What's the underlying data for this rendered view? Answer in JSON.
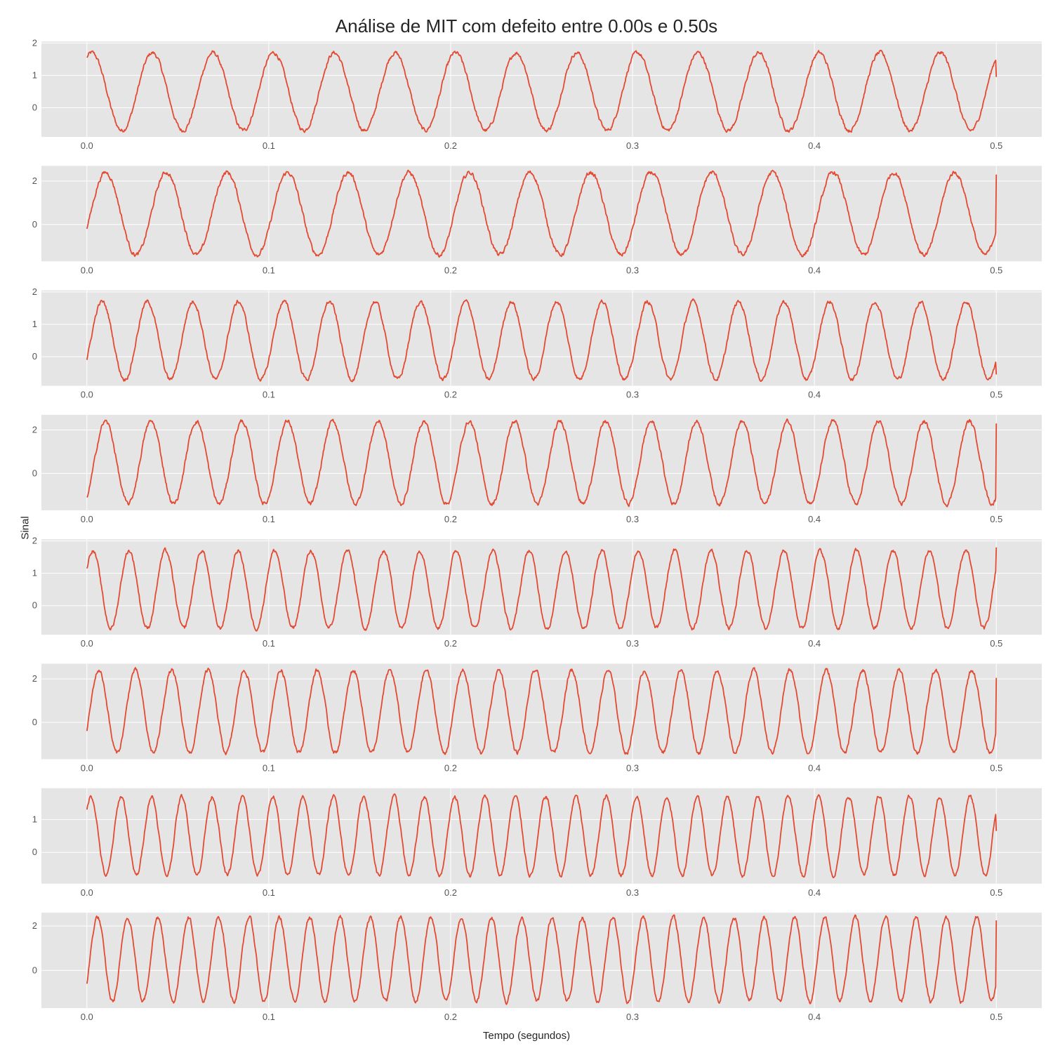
{
  "chart_data": {
    "type": "line",
    "title": "Análise de MIT com defeito entre 0.00s e 0.50s",
    "xlabel": "Tempo (segundos)",
    "ylabel": "Sinal",
    "xlim": [
      -0.025,
      0.525
    ],
    "x_ticks": [
      "0.0",
      "0.1",
      "0.2",
      "0.3",
      "0.4",
      "0.5"
    ],
    "grid": true,
    "background": "#e5e5e5",
    "line_color": "#e24a33",
    "noisy": true,
    "panels": [
      {
        "name": "",
        "x_range": [
          0.0,
          0.5
        ],
        "frequency_hz": 30,
        "offset": 0.5,
        "amplitude": 1.2,
        "start_value": 1.55,
        "end_value": 0.95,
        "ylim": [
          -0.9,
          2.05
        ],
        "y_ticks": [
          "0",
          "1",
          "2"
        ]
      },
      {
        "name": "",
        "x_range": [
          0.0,
          0.5
        ],
        "frequency_hz": 30,
        "offset": 0.5,
        "amplitude": 1.9,
        "start_value": -0.2,
        "end_value": 2.3,
        "ylim": [
          -1.7,
          2.7
        ],
        "y_ticks": [
          "0",
          "2"
        ]
      },
      {
        "name": "",
        "x_range": [
          0.0,
          0.5
        ],
        "frequency_hz": 40,
        "offset": 0.5,
        "amplitude": 1.2,
        "start_value": -0.1,
        "end_value": -0.55,
        "ylim": [
          -0.9,
          2.05
        ],
        "y_ticks": [
          "0",
          "1",
          "2"
        ]
      },
      {
        "name": "",
        "x_range": [
          0.0,
          0.5
        ],
        "frequency_hz": 40,
        "offset": 0.5,
        "amplitude": 1.9,
        "start_value": -1.1,
        "end_value": 2.3,
        "ylim": [
          -1.7,
          2.7
        ],
        "y_ticks": [
          "0",
          "2"
        ]
      },
      {
        "name": "",
        "x_range": [
          0.0,
          0.5
        ],
        "frequency_hz": 50,
        "offset": 0.5,
        "amplitude": 1.2,
        "start_value": 1.15,
        "end_value": 1.8,
        "ylim": [
          -0.9,
          2.05
        ],
        "y_ticks": [
          "0",
          "1",
          "2"
        ]
      },
      {
        "name": "",
        "x_range": [
          0.0,
          0.5
        ],
        "frequency_hz": 50,
        "offset": 0.5,
        "amplitude": 1.9,
        "start_value": -0.4,
        "end_value": 2.05,
        "ylim": [
          -1.7,
          2.7
        ],
        "y_ticks": [
          "0",
          "2"
        ]
      },
      {
        "name": "",
        "x_range": [
          0.0,
          0.5
        ],
        "frequency_hz": 60,
        "offset": 0.5,
        "amplitude": 1.2,
        "start_value": 1.3,
        "end_value": 0.65,
        "ylim": [
          -0.95,
          1.95
        ],
        "y_ticks": [
          "0",
          "1"
        ]
      },
      {
        "name": "",
        "x_range": [
          0.0,
          0.5
        ],
        "frequency_hz": 60,
        "offset": 0.5,
        "amplitude": 1.9,
        "start_value": -0.6,
        "end_value": 2.25,
        "ylim": [
          -1.7,
          2.6
        ],
        "y_ticks": [
          "0",
          "2"
        ]
      }
    ]
  }
}
